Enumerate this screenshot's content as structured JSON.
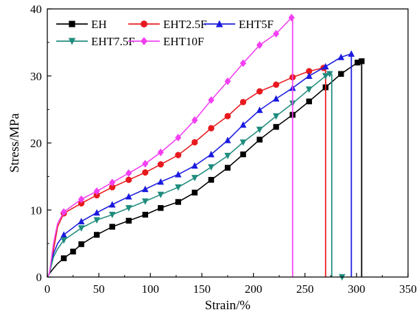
{
  "chart_data": {
    "type": "line",
    "xlabel": "Strain/%",
    "ylabel": "Stress/MPa",
    "xlim": [
      0,
      350
    ],
    "ylim": [
      0,
      40
    ],
    "xticks": [
      "0",
      "50",
      "100",
      "150",
      "200",
      "250",
      "300",
      "350"
    ],
    "yticks": [
      "0",
      "10",
      "20",
      "30",
      "40"
    ],
    "grid": false,
    "legend": "top-left",
    "series": [
      {
        "name": "EH",
        "color": "#000000",
        "marker": "square",
        "x": [
          0,
          2,
          6,
          10,
          16,
          25,
          33,
          48,
          63,
          79,
          95,
          110,
          127,
          143,
          159,
          175,
          190,
          206,
          222,
          238,
          254,
          270,
          285,
          301,
          305
        ],
        "y": [
          0,
          0.5,
          1.3,
          2.0,
          2.8,
          3.8,
          4.9,
          6.3,
          7.5,
          8.4,
          9.3,
          10.3,
          11.2,
          12.6,
          14.5,
          16.3,
          18.3,
          20.5,
          22.4,
          24.2,
          26.2,
          28.3,
          30.3,
          32.0,
          32.2
        ],
        "drop_x": 305
      },
      {
        "name": "EHT2.5F",
        "color": "#e8191d",
        "marker": "circle",
        "x": [
          0,
          2,
          6,
          10,
          16,
          33,
          48,
          63,
          79,
          95,
          110,
          127,
          143,
          159,
          175,
          190,
          206,
          222,
          238,
          254,
          268
        ],
        "y": [
          0,
          0.5,
          4.0,
          7.5,
          9.5,
          11.0,
          12.2,
          13.4,
          14.5,
          15.6,
          16.8,
          18.2,
          20.1,
          22.2,
          24.0,
          26.1,
          27.7,
          28.7,
          29.8,
          30.7,
          31.2
        ],
        "drop_x": 270
      },
      {
        "name": "EHT5F",
        "color": "#1a1ae0",
        "marker": "triangle-up",
        "x": [
          0,
          2,
          6,
          10,
          16,
          33,
          48,
          63,
          79,
          95,
          110,
          127,
          143,
          159,
          175,
          190,
          206,
          222,
          238,
          254,
          270,
          285,
          295
        ],
        "y": [
          0,
          0.5,
          3.5,
          5.0,
          6.3,
          8.3,
          9.6,
          10.8,
          12.0,
          13.1,
          14.2,
          15.3,
          16.6,
          18.3,
          20.4,
          22.7,
          24.9,
          26.6,
          28.2,
          30.0,
          31.4,
          32.8,
          33.3
        ],
        "drop_x": 295
      },
      {
        "name": "EHT7.5F",
        "color": "#1f8c7d",
        "marker": "triangle-down",
        "x": [
          0,
          2,
          6,
          10,
          16,
          33,
          48,
          63,
          79,
          95,
          110,
          127,
          143,
          159,
          175,
          190,
          206,
          222,
          238,
          254,
          270,
          274
        ],
        "y": [
          0,
          0.5,
          3.0,
          4.2,
          5.5,
          7.3,
          8.5,
          9.3,
          10.3,
          11.3,
          12.3,
          13.4,
          14.8,
          16.4,
          18.1,
          20.1,
          22.0,
          24.0,
          25.9,
          28.0,
          30.0,
          30.3
        ],
        "drop_x": 276,
        "end_marker": {
          "x": 286,
          "y": 0
        }
      },
      {
        "name": "EHT10F",
        "color": "#f23ff2",
        "marker": "diamond",
        "x": [
          0,
          2,
          6,
          10,
          16,
          33,
          48,
          63,
          79,
          95,
          110,
          127,
          143,
          159,
          175,
          190,
          206,
          222,
          237
        ],
        "y": [
          0,
          0.5,
          5.0,
          8.0,
          9.7,
          11.6,
          12.8,
          14.1,
          15.5,
          16.9,
          18.6,
          20.8,
          23.4,
          26.4,
          29.2,
          31.9,
          34.6,
          36.3,
          38.7
        ],
        "drop_x": 238
      }
    ]
  }
}
